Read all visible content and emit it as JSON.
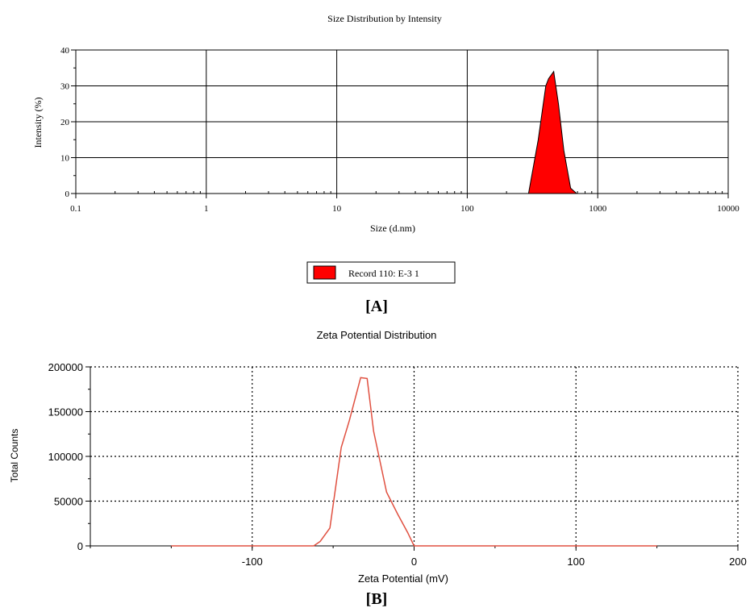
{
  "chart_data": [
    {
      "panel_label": "[A]",
      "type": "area",
      "title": "Size Distribution by Intensity",
      "xlabel": "Size (d.nm)",
      "ylabel": "Intensity (%)",
      "xscale": "log",
      "xlim": [
        0.1,
        10000
      ],
      "ylim": [
        0,
        40
      ],
      "x_ticks": [
        "0.1",
        "1",
        "10",
        "100",
        "1000",
        "10000"
      ],
      "y_ticks": [
        "0",
        "10",
        "20",
        "30",
        "40"
      ],
      "grid": true,
      "legend_position": "bottom-center",
      "series": [
        {
          "name": "Record 110: E-3 1",
          "color": "#ff0000",
          "x": [
            295,
            350,
            400,
            420,
            460,
            500,
            550,
            620,
            690
          ],
          "y": [
            0,
            15,
            30,
            32,
            34,
            25,
            12,
            1.5,
            0
          ]
        }
      ]
    },
    {
      "panel_label": "[B]",
      "type": "line",
      "title": "Zeta Potential Distribution",
      "xlabel": "Zeta Potential (mV)",
      "ylabel": "Total Counts",
      "xlim": [
        -200,
        200
      ],
      "ylim": [
        0,
        200000
      ],
      "x_ticks": [
        "-100",
        "0",
        "100",
        "200"
      ],
      "y_ticks": [
        "0",
        "50000",
        "100000",
        "150000",
        "200000"
      ],
      "grid": true,
      "grid_style": "dotted",
      "series": [
        {
          "color": "#e05040",
          "x": [
            -150,
            -62,
            -58,
            -52,
            -45,
            -40,
            -33,
            -29,
            -25,
            -17,
            -10,
            -4,
            0,
            150
          ],
          "y": [
            0,
            0,
            5000,
            20000,
            110000,
            140000,
            188000,
            187000,
            128000,
            60000,
            35000,
            15000,
            0,
            0
          ]
        }
      ]
    }
  ]
}
